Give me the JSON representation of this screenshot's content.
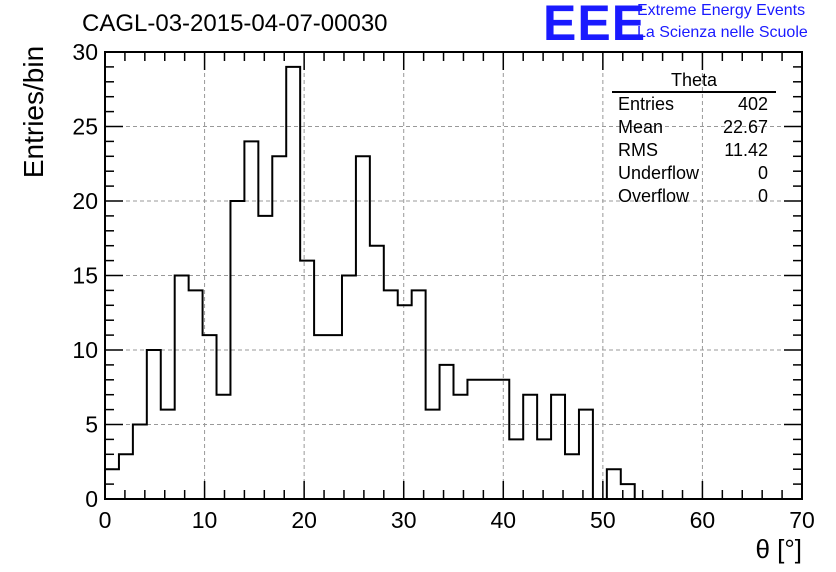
{
  "chart_data": {
    "type": "bar",
    "title": "CAGL-03-2015-04-07-00030",
    "xlabel": "θ [°]",
    "ylabel": "Entries/bin",
    "xlim": [
      0,
      70
    ],
    "ylim": [
      0,
      30
    ],
    "bin_width": 1.4,
    "x_ticks": [
      0,
      10,
      20,
      30,
      40,
      50,
      60,
      70
    ],
    "y_ticks": [
      0,
      5,
      10,
      15,
      20,
      25,
      30
    ],
    "grid": true,
    "values": [
      2,
      3,
      5,
      10,
      6,
      15,
      14,
      11,
      7,
      20,
      24,
      19,
      23,
      29,
      16,
      11,
      11,
      15,
      23,
      17,
      14,
      13,
      14,
      6,
      9,
      7,
      8,
      8,
      8,
      4,
      7,
      4,
      7,
      3,
      6,
      0,
      2,
      1,
      0,
      0,
      0,
      0,
      0,
      0,
      0,
      0,
      0,
      0,
      0,
      0
    ],
    "stats": {
      "title": "Theta",
      "rows": [
        {
          "label": "Entries",
          "value": "402"
        },
        {
          "label": "Mean",
          "value": "22.67"
        },
        {
          "label": "RMS",
          "value": "11.42"
        },
        {
          "label": "Underflow",
          "value": "0"
        },
        {
          "label": "Overflow",
          "value": "0"
        }
      ]
    }
  },
  "logo": {
    "text": "EEE",
    "line1": "Extreme Energy Events",
    "line2": "La Scienza nelle Scuole",
    "color": "#1a1aff"
  }
}
